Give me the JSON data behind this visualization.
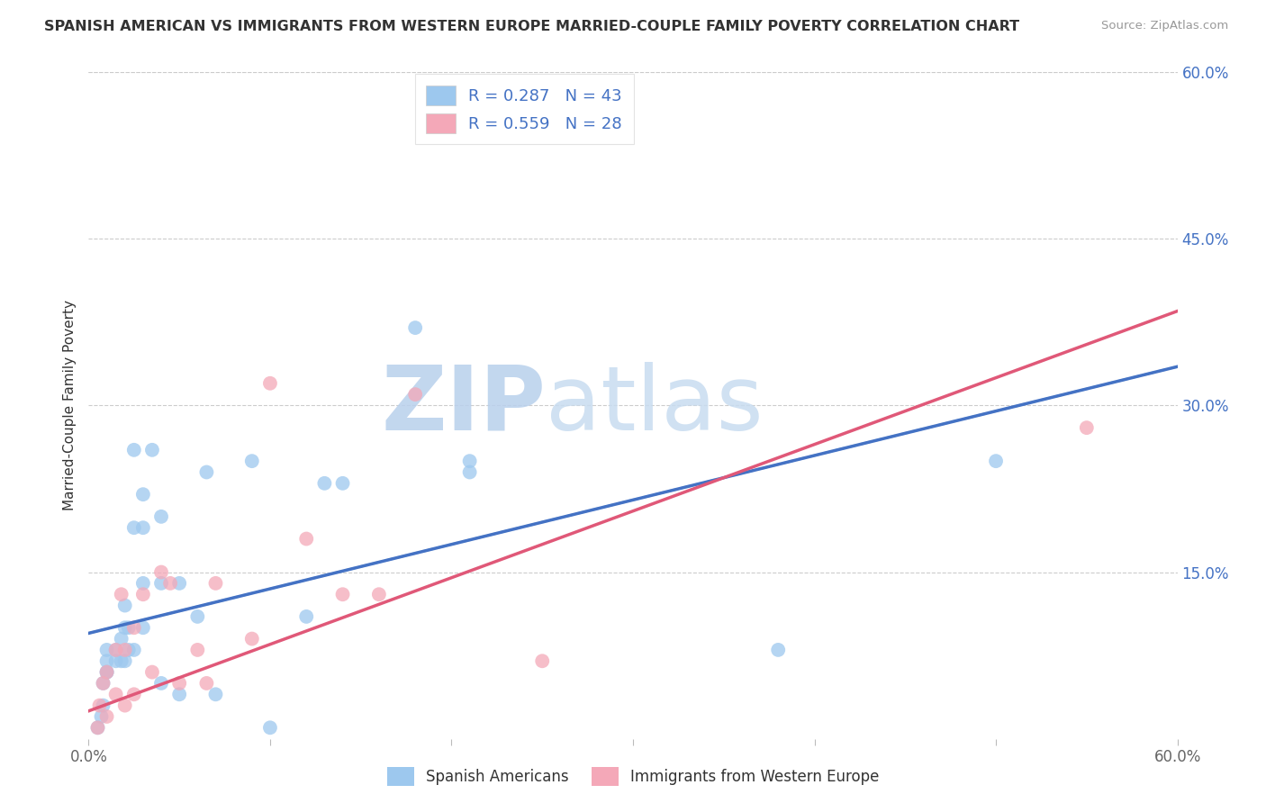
{
  "title": "SPANISH AMERICAN VS IMMIGRANTS FROM WESTERN EUROPE MARRIED-COUPLE FAMILY POVERTY CORRELATION CHART",
  "source": "Source: ZipAtlas.com",
  "ylabel": "Married-Couple Family Poverty",
  "xlim": [
    0.0,
    0.6
  ],
  "ylim": [
    0.0,
    0.6
  ],
  "legend_r1": "R = 0.287",
  "legend_n1": "N = 43",
  "legend_r2": "R = 0.559",
  "legend_n2": "N = 28",
  "blue_color": "#9DC8EE",
  "pink_color": "#F4A8B8",
  "line_blue": "#4472C4",
  "line_pink": "#E05878",
  "dash_color": "#9DC8EE",
  "legend_text_color": "#4472C4",
  "watermark": "ZIPatlas",
  "watermark_color_zip": "#C0D8F0",
  "watermark_color_atlas": "#B8CCE8",
  "grid_color": "#CCCCCC",
  "blue_line_x0": 0.0,
  "blue_line_y0": 0.095,
  "blue_line_x1": 0.6,
  "blue_line_y1": 0.335,
  "pink_line_x0": 0.0,
  "pink_line_y0": 0.025,
  "pink_line_x1": 0.6,
  "pink_line_y1": 0.385,
  "blue_scatter_x": [
    0.005,
    0.007,
    0.008,
    0.008,
    0.01,
    0.01,
    0.01,
    0.01,
    0.015,
    0.015,
    0.018,
    0.018,
    0.02,
    0.02,
    0.02,
    0.022,
    0.022,
    0.025,
    0.025,
    0.025,
    0.03,
    0.03,
    0.03,
    0.03,
    0.035,
    0.04,
    0.04,
    0.04,
    0.05,
    0.05,
    0.06,
    0.065,
    0.07,
    0.09,
    0.1,
    0.12,
    0.13,
    0.14,
    0.18,
    0.21,
    0.21,
    0.38,
    0.5
  ],
  "blue_scatter_y": [
    0.01,
    0.02,
    0.03,
    0.05,
    0.06,
    0.06,
    0.07,
    0.08,
    0.07,
    0.08,
    0.07,
    0.09,
    0.07,
    0.1,
    0.12,
    0.08,
    0.1,
    0.08,
    0.19,
    0.26,
    0.1,
    0.14,
    0.19,
    0.22,
    0.26,
    0.05,
    0.14,
    0.2,
    0.04,
    0.14,
    0.11,
    0.24,
    0.04,
    0.25,
    0.01,
    0.11,
    0.23,
    0.23,
    0.37,
    0.24,
    0.25,
    0.08,
    0.25
  ],
  "pink_scatter_x": [
    0.005,
    0.006,
    0.008,
    0.01,
    0.01,
    0.015,
    0.015,
    0.018,
    0.02,
    0.02,
    0.025,
    0.025,
    0.03,
    0.035,
    0.04,
    0.045,
    0.05,
    0.06,
    0.065,
    0.07,
    0.09,
    0.1,
    0.12,
    0.14,
    0.16,
    0.18,
    0.25,
    0.55
  ],
  "pink_scatter_y": [
    0.01,
    0.03,
    0.05,
    0.02,
    0.06,
    0.04,
    0.08,
    0.13,
    0.03,
    0.08,
    0.04,
    0.1,
    0.13,
    0.06,
    0.15,
    0.14,
    0.05,
    0.08,
    0.05,
    0.14,
    0.09,
    0.32,
    0.18,
    0.13,
    0.13,
    0.31,
    0.07,
    0.28
  ]
}
